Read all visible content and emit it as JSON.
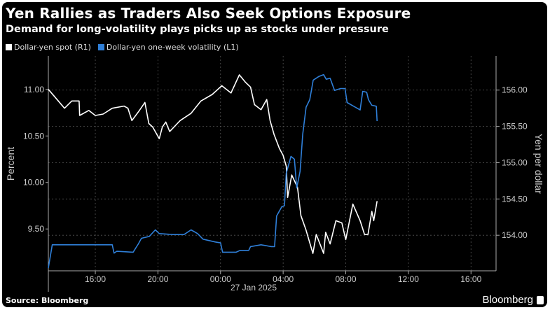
{
  "title": "Yen Rallies as Traders Also Seek Options Exposure",
  "subtitle": "Demand for long-volatility plays picks up as stocks under pressure",
  "source": "Source: Bloomberg",
  "brand": "Bloomberg",
  "colors": {
    "background": "#000000",
    "spot": "#ffffff",
    "volatility": "#2f7fd8",
    "grid": "#555555"
  },
  "chart_data": {
    "type": "line",
    "title": "Yen Rallies as Traders Also Seek Options Exposure",
    "subtitle": "Demand for long-volatility plays picks up as stocks under pressure",
    "legend_position": "top-left",
    "grid": true,
    "x_range": [
      "2025-01-26T13:00",
      "2025-01-27T17:36"
    ],
    "x_ticks": [
      "16:00",
      "20:00",
      "00:00",
      "04:00",
      "08:00",
      "12:00",
      "16:00"
    ],
    "x_date_label": "27 Jan 2025",
    "y_left": {
      "label": "Percent",
      "range": [
        9.05,
        11.36
      ],
      "ticks": [
        "11.00",
        "10.50",
        "10.00",
        "9.50"
      ]
    },
    "y_right": {
      "label": "Yen per dollar",
      "range": [
        153.51,
        156.47
      ],
      "ticks": [
        "156.00",
        "155.50",
        "155.00",
        "154.50",
        "154.00"
      ]
    },
    "series": [
      {
        "name": "Dollar-yen spot (R1)",
        "axis": "right",
        "points": [
          [
            "2025-01-26T13:00",
            156.01
          ],
          [
            "2025-01-26T14:02",
            155.75
          ],
          [
            "2025-01-26T14:30",
            155.85
          ],
          [
            "2025-01-26T14:58",
            155.85
          ],
          [
            "2025-01-26T15:00",
            155.65
          ],
          [
            "2025-01-26T15:35",
            155.72
          ],
          [
            "2025-01-26T16:00",
            155.65
          ],
          [
            "2025-01-26T16:30",
            155.67
          ],
          [
            "2025-01-26T17:05",
            155.75
          ],
          [
            "2025-01-26T17:50",
            155.78
          ],
          [
            "2025-01-26T18:05",
            155.75
          ],
          [
            "2025-01-26T18:20",
            155.58
          ],
          [
            "2025-01-26T18:45",
            155.7
          ],
          [
            "2025-01-26T19:10",
            155.83
          ],
          [
            "2025-01-26T19:25",
            155.54
          ],
          [
            "2025-01-26T19:40",
            155.49
          ],
          [
            "2025-01-26T20:05",
            155.33
          ],
          [
            "2025-01-26T20:17",
            155.49
          ],
          [
            "2025-01-26T20:30",
            155.56
          ],
          [
            "2025-01-26T20:45",
            155.43
          ],
          [
            "2025-01-26T21:25",
            155.58
          ],
          [
            "2025-01-26T22:07",
            155.68
          ],
          [
            "2025-01-26T22:45",
            155.85
          ],
          [
            "2025-01-26T23:28",
            155.94
          ],
          [
            "2025-01-27T00:05",
            156.06
          ],
          [
            "2025-01-27T00:40",
            155.96
          ],
          [
            "2025-01-27T01:12",
            156.21
          ],
          [
            "2025-01-27T01:35",
            156.11
          ],
          [
            "2025-01-27T01:55",
            156.04
          ],
          [
            "2025-01-27T02:10",
            155.8
          ],
          [
            "2025-01-27T02:35",
            155.73
          ],
          [
            "2025-01-27T02:57",
            155.87
          ],
          [
            "2025-01-27T03:10",
            155.58
          ],
          [
            "2025-01-27T03:25",
            155.39
          ],
          [
            "2025-01-27T03:45",
            155.2
          ],
          [
            "2025-01-27T04:00",
            155.1
          ],
          [
            "2025-01-27T04:12",
            154.95
          ],
          [
            "2025-01-27T04:17",
            154.52
          ],
          [
            "2025-01-27T04:33",
            154.83
          ],
          [
            "2025-01-27T04:55",
            154.66
          ],
          [
            "2025-01-27T05:08",
            154.27
          ],
          [
            "2025-01-27T05:27",
            154.08
          ],
          [
            "2025-01-27T05:54",
            153.75
          ],
          [
            "2025-01-27T06:07",
            154.01
          ],
          [
            "2025-01-27T06:35",
            153.75
          ],
          [
            "2025-01-27T06:43",
            154.04
          ],
          [
            "2025-01-27T07:00",
            153.88
          ],
          [
            "2025-01-27T07:22",
            154.2
          ],
          [
            "2025-01-27T07:45",
            154.17
          ],
          [
            "2025-01-27T08:00",
            153.94
          ],
          [
            "2025-01-27T08:27",
            154.43
          ],
          [
            "2025-01-27T08:55",
            154.2
          ],
          [
            "2025-01-27T09:12",
            154.01
          ],
          [
            "2025-01-27T09:25",
            154.01
          ],
          [
            "2025-01-27T09:40",
            154.33
          ],
          [
            "2025-01-27T09:47",
            154.2
          ],
          [
            "2025-01-27T10:00",
            154.47
          ]
        ]
      },
      {
        "name": "Dollar-yen one-week volatility (L1)",
        "axis": "left",
        "points": [
          [
            "2025-01-26T13:00",
            9.08
          ],
          [
            "2025-01-26T13:15",
            9.33
          ],
          [
            "2025-01-26T14:50",
            9.33
          ],
          [
            "2025-01-26T17:05",
            9.33
          ],
          [
            "2025-01-26T17:12",
            9.24
          ],
          [
            "2025-01-26T17:22",
            9.26
          ],
          [
            "2025-01-26T18:25",
            9.25
          ],
          [
            "2025-01-26T18:45",
            9.34
          ],
          [
            "2025-01-26T18:57",
            9.4
          ],
          [
            "2025-01-26T19:27",
            9.42
          ],
          [
            "2025-01-26T19:50",
            9.49
          ],
          [
            "2025-01-26T20:05",
            9.45
          ],
          [
            "2025-01-26T20:58",
            9.44
          ],
          [
            "2025-01-26T21:40",
            9.44
          ],
          [
            "2025-01-26T22:07",
            9.49
          ],
          [
            "2025-01-26T22:32",
            9.45
          ],
          [
            "2025-01-26T22:53",
            9.39
          ],
          [
            "2025-01-26T23:40",
            9.36
          ],
          [
            "2025-01-27T00:00",
            9.35
          ],
          [
            "2025-01-27T00:08",
            9.25
          ],
          [
            "2025-01-27T01:00",
            9.25
          ],
          [
            "2025-01-27T01:15",
            9.27
          ],
          [
            "2025-01-27T01:48",
            9.27
          ],
          [
            "2025-01-27T01:55",
            9.31
          ],
          [
            "2025-01-27T02:35",
            9.33
          ],
          [
            "2025-01-27T03:15",
            9.31
          ],
          [
            "2025-01-27T03:27",
            9.31
          ],
          [
            "2025-01-27T03:35",
            9.64
          ],
          [
            "2025-01-27T03:55",
            9.74
          ],
          [
            "2025-01-27T04:05",
            9.75
          ],
          [
            "2025-01-27T04:12",
            10.1
          ],
          [
            "2025-01-27T04:30",
            10.28
          ],
          [
            "2025-01-27T04:43",
            10.25
          ],
          [
            "2025-01-27T04:52",
            9.94
          ],
          [
            "2025-01-27T05:05",
            10.12
          ],
          [
            "2025-01-27T05:15",
            10.52
          ],
          [
            "2025-01-27T05:28",
            10.81
          ],
          [
            "2025-01-27T05:42",
            10.89
          ],
          [
            "2025-01-27T05:55",
            11.1
          ],
          [
            "2025-01-27T06:17",
            11.14
          ],
          [
            "2025-01-27T06:35",
            11.16
          ],
          [
            "2025-01-27T06:45",
            11.11
          ],
          [
            "2025-01-27T07:00",
            11.12
          ],
          [
            "2025-01-27T07:17",
            10.99
          ],
          [
            "2025-01-27T07:40",
            11.01
          ],
          [
            "2025-01-27T07:57",
            11.01
          ],
          [
            "2025-01-27T08:05",
            10.86
          ],
          [
            "2025-01-27T08:55",
            10.78
          ],
          [
            "2025-01-27T09:05",
            10.98
          ],
          [
            "2025-01-27T09:20",
            10.97
          ],
          [
            "2025-01-27T09:27",
            10.89
          ],
          [
            "2025-01-27T09:40",
            10.83
          ],
          [
            "2025-01-27T09:57",
            10.82
          ],
          [
            "2025-01-27T10:00",
            10.66
          ]
        ]
      }
    ]
  }
}
